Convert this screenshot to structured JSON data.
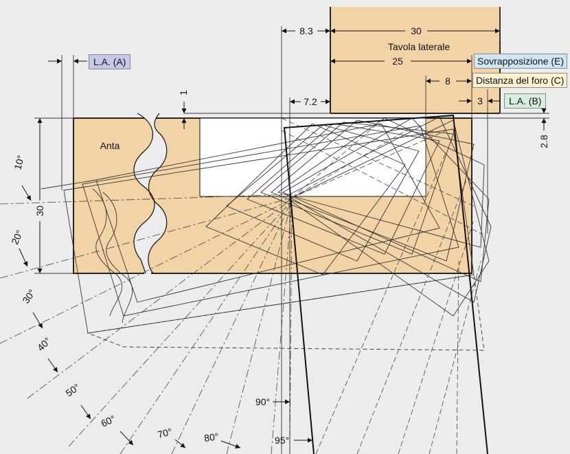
{
  "labels": {
    "la_a": "L.A. (A)",
    "la_b": "L.A. (B)",
    "overlay": "Sovrapposizione (E)",
    "hole_distance": "Distanza del foro (C)",
    "side_panel": "Tavola laterale",
    "door": "Anta"
  },
  "dimensions": {
    "d_8_3": "8.3",
    "d_30_top": "30",
    "d_25": "25",
    "d_8": "8",
    "d_7_2": "7.2",
    "d_3": "3",
    "d_1": "1",
    "d_2_8": "2.8",
    "d_30_left": "30"
  },
  "angles": [
    "10°",
    "20°",
    "30°",
    "40°",
    "50°",
    "60°",
    "70°",
    "80°",
    "90°",
    "95°"
  ],
  "colors": {
    "wood": "#f2d3a5",
    "background": "#ececec",
    "la_a_box": "#c8c7ea",
    "la_b_box": "#d6eede",
    "overlay_box": "#cfe6f5",
    "hole_box": "#fbf1cf"
  }
}
